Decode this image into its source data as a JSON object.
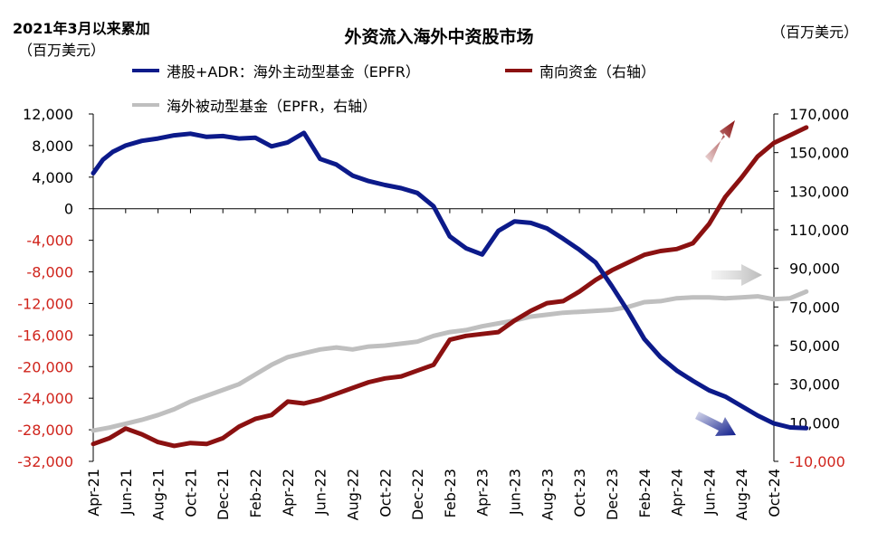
{
  "chart_data": {
    "type": "line",
    "title": "外资流入海外中资股市场",
    "left_axis_title": "2021年3月以来累加",
    "left_axis_unit": "（百万美元）",
    "right_axis_unit": "（百万美元）",
    "x_ticks": [
      "Apr-21",
      "Jun-21",
      "Aug-21",
      "Oct-21",
      "Dec-21",
      "Feb-22",
      "Apr-22",
      "Jun-22",
      "Aug-22",
      "Oct-22",
      "Dec-22",
      "Feb-23",
      "Apr-23",
      "Jun-23",
      "Aug-23",
      "Oct-23",
      "Dec-23",
      "Feb-24",
      "Apr-24",
      "Jun-24",
      "Aug-24",
      "Oct-24"
    ],
    "left_axis": {
      "min": -32000,
      "max": 12000,
      "ticks": [
        12000,
        8000,
        4000,
        0,
        -4000,
        -8000,
        -12000,
        -16000,
        -20000,
        -24000,
        -28000,
        -32000
      ],
      "tick_labels": [
        "12,000",
        "8,000",
        "4,000",
        "0",
        "-4,000",
        "-8,000",
        "-12,000",
        "-16,000",
        "-20,000",
        "-24,000",
        "-28,000",
        "-32,000"
      ],
      "positive_color": "#000000",
      "negative_color": "#d0241c"
    },
    "right_axis": {
      "min": -10000,
      "max": 170000,
      "ticks": [
        170000,
        150000,
        130000,
        110000,
        90000,
        70000,
        50000,
        30000,
        10000,
        -10000
      ],
      "tick_labels": [
        "170,000",
        "150,000",
        "130,000",
        "110,000",
        "90,000",
        "70,000",
        "50,000",
        "30,000",
        "10,000",
        "-10,000"
      ],
      "positive_color": "#000000",
      "negative_color": "#d0241c"
    },
    "series": [
      {
        "name": "港股+ADR：海外主动型基金（EPFR）",
        "axis": "left",
        "color": "#0c1a8a",
        "x": [
          0,
          0.3,
          0.6,
          1,
          1.5,
          2,
          2.5,
          3,
          3.5,
          4,
          4.5,
          5,
          5.5,
          6,
          6.5,
          7,
          7.5,
          8,
          8.5,
          9,
          9.5,
          10,
          10.5,
          11,
          11.5,
          12,
          12.5,
          13,
          13.5,
          14,
          14.5,
          15,
          15.5,
          16,
          16.5,
          17,
          17.5,
          18,
          18.5,
          19,
          19.5,
          20,
          20.5,
          21,
          21.5,
          22
        ],
        "y": [
          4500,
          6200,
          7200,
          8000,
          8600,
          8900,
          9300,
          9500,
          9100,
          9200,
          8900,
          9000,
          7900,
          8400,
          9600,
          6300,
          5600,
          4200,
          3500,
          3000,
          2600,
          2000,
          300,
          -3500,
          -5000,
          -5800,
          -2800,
          -1600,
          -1800,
          -2500,
          -3800,
          -5200,
          -6800,
          -9800,
          -13000,
          -16500,
          -18800,
          -20500,
          -21800,
          -23000,
          -23800,
          -25000,
          -26200,
          -27200,
          -27700,
          -27800
        ]
      },
      {
        "name": "南向资金（右轴）",
        "axis": "right",
        "color": "#8b1111",
        "x": [
          0,
          0.5,
          1,
          1.5,
          2,
          2.5,
          3,
          3.5,
          4,
          4.5,
          5,
          5.5,
          6,
          6.5,
          7,
          7.5,
          8,
          8.5,
          9,
          9.5,
          10,
          10.5,
          11,
          11.5,
          12,
          12.5,
          13,
          13.5,
          14,
          14.5,
          15,
          15.5,
          16,
          16.5,
          17,
          17.5,
          18,
          18.5,
          19,
          19.5,
          20,
          20.5,
          21,
          21.5,
          22
        ],
        "y": [
          -1000,
          2000,
          7000,
          4000,
          0,
          -2000,
          -500,
          -1000,
          2000,
          8000,
          12000,
          14000,
          21000,
          20000,
          22000,
          25000,
          28000,
          31000,
          33000,
          34000,
          37000,
          40000,
          53000,
          55000,
          56000,
          57000,
          63000,
          68000,
          72000,
          73000,
          78000,
          84000,
          89000,
          93000,
          97000,
          99000,
          100000,
          103000,
          113000,
          127000,
          137000,
          148000,
          155000,
          159000,
          163000
        ]
      },
      {
        "name": "海外被动型基金（EPFR，右轴）",
        "axis": "right",
        "color": "#bfbfbf",
        "x": [
          0,
          0.5,
          1,
          1.5,
          2,
          2.5,
          3,
          3.5,
          4,
          4.5,
          5,
          5.5,
          6,
          6.5,
          7,
          7.5,
          8,
          8.5,
          9,
          9.5,
          10,
          10.5,
          11,
          11.5,
          12,
          12.5,
          13,
          13.5,
          14,
          14.5,
          15,
          15.5,
          16,
          16.5,
          17,
          17.5,
          18,
          18.5,
          19,
          19.5,
          20,
          20.5,
          21,
          21.5,
          22
        ],
        "y": [
          6000,
          7500,
          9500,
          11500,
          14000,
          17000,
          21000,
          24000,
          27000,
          30000,
          35000,
          40000,
          44000,
          46000,
          48000,
          49000,
          48000,
          49500,
          50000,
          51000,
          52000,
          55000,
          57000,
          58000,
          60000,
          61500,
          63000,
          65000,
          66000,
          67000,
          67500,
          68000,
          68500,
          70000,
          72500,
          73000,
          74500,
          75000,
          75000,
          74500,
          75000,
          75500,
          74000,
          74500,
          78000
        ]
      }
    ],
    "legend": [
      {
        "label": "港股+ADR：海外主动型基金（EPFR）",
        "color": "#0c1a8a"
      },
      {
        "label": "南向资金（右轴）",
        "color": "#8b1111"
      },
      {
        "label": "海外被动型基金（EPFR，右轴）",
        "color": "#bfbfbf"
      }
    ],
    "annotations": [
      {
        "type": "arrow",
        "direction": "up",
        "color": "#8b1111"
      },
      {
        "type": "arrow",
        "direction": "right",
        "color": "#cccccc"
      },
      {
        "type": "arrow",
        "direction": "down",
        "color": "#0c1a8a"
      }
    ]
  }
}
